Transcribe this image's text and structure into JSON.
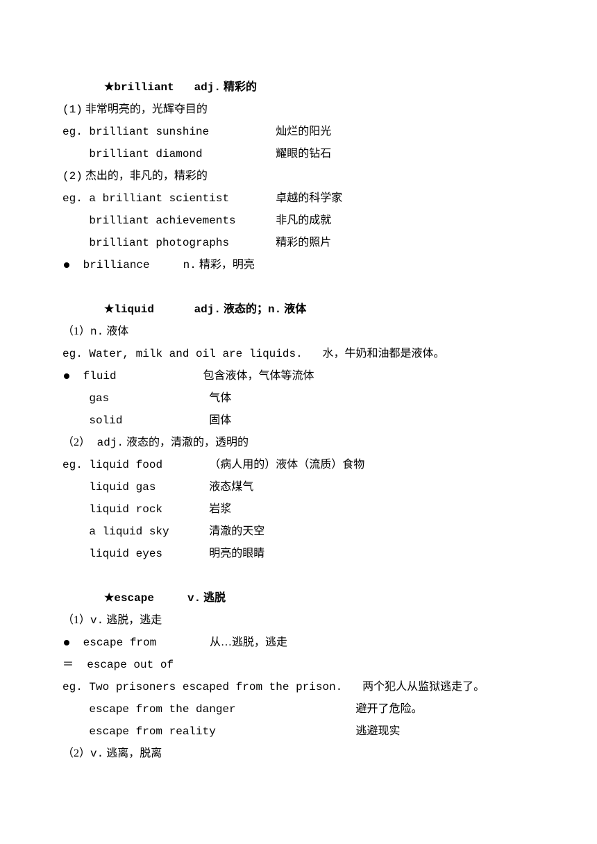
{
  "typography": {
    "body_font": "SimSun / Courier New",
    "font_size_pt": 12,
    "line_height": 2.0,
    "text_color": "#000000",
    "background_color": "#ffffff"
  },
  "entry1": {
    "star": "★",
    "word": "brilliant",
    "pos": "adj.",
    "gloss": "精彩的",
    "sense1_num": "(1)",
    "sense1_txt": "非常明亮的，光辉夺目的",
    "eg_label": "eg.",
    "ex1a_en": "brilliant sunshine",
    "ex1a_zh": "灿烂的阳光",
    "ex1b_en": "brilliant diamond",
    "ex1b_zh": "耀眼的钻石",
    "sense2_num": "(2)",
    "sense2_txt": "杰出的，非凡的，精彩的",
    "ex2a_en": "a brilliant scientist",
    "ex2a_zh": "卓越的科学家",
    "ex2b_en": "brilliant achievements",
    "ex2b_zh": "非凡的成就",
    "ex2c_en": "brilliant photographs",
    "ex2c_zh": "精彩的照片",
    "deriv_word": "brilliance",
    "deriv_pos": "n.",
    "deriv_gloss": "精彩，明亮"
  },
  "entry2": {
    "star": "★",
    "word": "liquid",
    "pos": "adj.",
    "gloss1": "液态的；",
    "pos2": "n.",
    "gloss2": "液体",
    "sense1_num": "（1）",
    "sense1_pos": "n.",
    "sense1_txt": "液体",
    "eg_label": "eg.",
    "ex1_en": "Water, milk and oil are liquids.",
    "ex1_zh": "水，牛奶和油都是液体。",
    "rel1_en": "fluid",
    "rel1_zh": "包含液体，气体等流体",
    "rel2_en": "gas",
    "rel2_zh": "气体",
    "rel3_en": "solid",
    "rel3_zh": "固体",
    "sense2_num": "（2）",
    "sense2_pos": " adj.",
    "sense2_txt": "液态的，清澈的，透明的",
    "ex2a_en": "liquid food",
    "ex2a_zh": "（病人用的）液体（流质）食物",
    "ex2b_en": "liquid gas",
    "ex2b_zh": "液态煤气",
    "ex2c_en": "liquid rock",
    "ex2c_zh": "岩浆",
    "ex2d_en": "a liquid sky",
    "ex2d_zh": "清澈的天空",
    "ex2e_en": "liquid eyes",
    "ex2e_zh": "明亮的眼睛"
  },
  "entry3": {
    "star": "★",
    "word": "escape",
    "pos": "v.",
    "gloss": "逃脱",
    "sense1_num": "（1）",
    "sense1_pos": "v.",
    "sense1_txt": "逃脱，逃走",
    "phr1_en": "escape from",
    "phr1_zh": "从…逃脱，逃走",
    "eq": "＝",
    "phr2_en": "escape out of",
    "eg_label": "eg.",
    "ex1_en": "Two prisoners escaped from the prison.",
    "ex1_zh": "两个犯人从监狱逃走了。",
    "ex2_en": "escape from the danger",
    "ex2_zh": "避开了危险。",
    "ex3_en": "escape from reality",
    "ex3_zh": "逃避现实",
    "sense2_num": "（2）",
    "sense2_pos": "v.",
    "sense2_txt": "逃离，脱离"
  }
}
